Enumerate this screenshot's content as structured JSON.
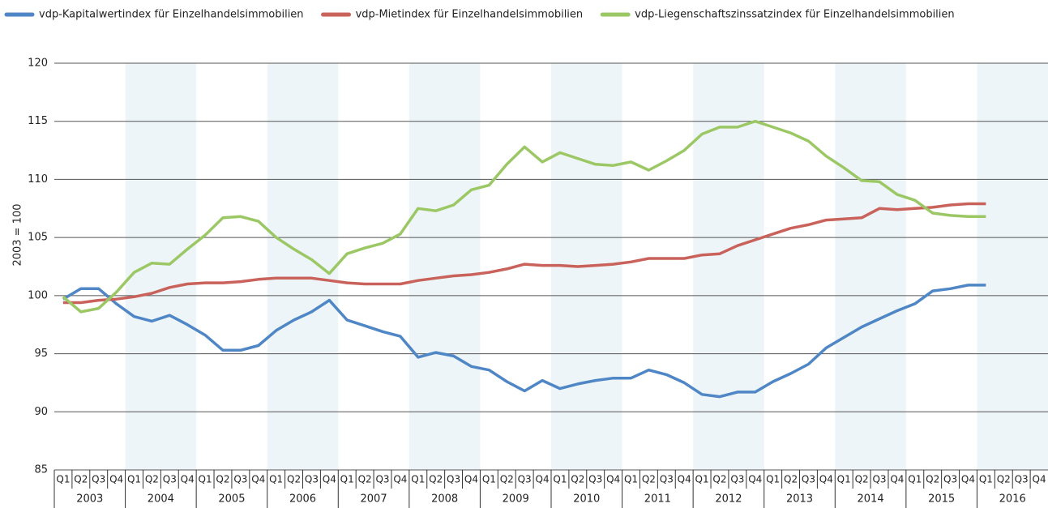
{
  "chart_data": {
    "type": "line",
    "ylabel": "2003 = 100",
    "categories": [
      "Q1",
      "Q2",
      "Q3",
      "Q4",
      "Q1",
      "Q2",
      "Q3",
      "Q4",
      "Q1",
      "Q2",
      "Q3",
      "Q4",
      "Q1",
      "Q2",
      "Q3",
      "Q4",
      "Q1",
      "Q2",
      "Q3",
      "Q4",
      "Q1",
      "Q2",
      "Q3",
      "Q4",
      "Q1",
      "Q2",
      "Q3",
      "Q4",
      "Q1",
      "Q2",
      "Q3",
      "Q4",
      "Q1",
      "Q2",
      "Q3",
      "Q4",
      "Q1",
      "Q2",
      "Q3",
      "Q4",
      "Q1",
      "Q2",
      "Q3",
      "Q4",
      "Q1",
      "Q2",
      "Q3",
      "Q4",
      "Q1",
      "Q2",
      "Q3",
      "Q4",
      "Q1",
      "Q2",
      "Q3",
      "Q4"
    ],
    "years": [
      "2003",
      "2004",
      "2005",
      "2006",
      "2007",
      "2008",
      "2009",
      "2010",
      "2011",
      "2012",
      "2013",
      "2014",
      "2015",
      "2016"
    ],
    "series": [
      {
        "name": "vdp-Kapitalwertindex für Einzelhandelsimmobilien",
        "color": "#4f86c6",
        "values": [
          99.7,
          100.6,
          100.6,
          99.3,
          98.2,
          97.8,
          98.3,
          97.5,
          96.6,
          95.3,
          95.3,
          95.7,
          97.0,
          97.9,
          98.6,
          99.6,
          97.9,
          97.4,
          96.9,
          96.5,
          94.7,
          95.1,
          94.8,
          93.9,
          93.6,
          92.6,
          91.8,
          92.7,
          92.0,
          92.4,
          92.7,
          92.9,
          92.9,
          93.6,
          93.2,
          92.5,
          91.5,
          91.3,
          91.7,
          91.7,
          92.6,
          93.3,
          94.1,
          95.5,
          96.4,
          97.3,
          98.0,
          98.7,
          99.3,
          100.4,
          100.6,
          100.9,
          100.9,
          null,
          null,
          null
        ]
      },
      {
        "name": "vdp-Mietindex für Einzelhandelsimmobilien",
        "color": "#c9625a",
        "values": [
          99.4,
          99.4,
          99.6,
          99.7,
          99.9,
          100.2,
          100.7,
          101.0,
          101.1,
          101.1,
          101.2,
          101.4,
          101.5,
          101.5,
          101.5,
          101.3,
          101.1,
          101.0,
          101.0,
          101.0,
          101.3,
          101.5,
          101.7,
          101.8,
          102.0,
          102.3,
          102.7,
          102.6,
          102.6,
          102.5,
          102.6,
          102.7,
          102.9,
          103.2,
          103.2,
          103.2,
          103.5,
          103.6,
          104.3,
          104.8,
          105.3,
          105.8,
          106.1,
          106.5,
          106.6,
          106.7,
          107.5,
          107.4,
          107.5,
          107.6,
          107.8,
          107.9,
          107.9,
          null,
          null,
          null
        ]
      },
      {
        "name": "vdp-Liegenschaftszinssatzindex für Einzelhandelsimmobilien",
        "color": "#9bc865",
        "values": [
          99.9,
          98.6,
          98.9,
          100.3,
          102.0,
          102.8,
          102.7,
          104.0,
          105.2,
          106.7,
          106.8,
          106.4,
          105.0,
          104.0,
          103.1,
          101.9,
          103.6,
          104.1,
          104.5,
          105.3,
          107.5,
          107.3,
          107.8,
          109.1,
          109.5,
          111.3,
          112.8,
          111.5,
          112.3,
          111.8,
          111.3,
          111.2,
          111.5,
          110.8,
          111.6,
          112.5,
          113.9,
          114.5,
          114.5,
          115.0,
          114.5,
          114.0,
          113.3,
          112.0,
          111.0,
          109.9,
          109.8,
          108.7,
          108.2,
          107.1,
          106.9,
          106.8,
          106.8,
          null,
          null,
          null
        ]
      }
    ],
    "ylim": [
      85,
      120
    ],
    "yticks": [
      85,
      90,
      95,
      100,
      105,
      110,
      115,
      120
    ],
    "grid": true,
    "legend": "top"
  }
}
